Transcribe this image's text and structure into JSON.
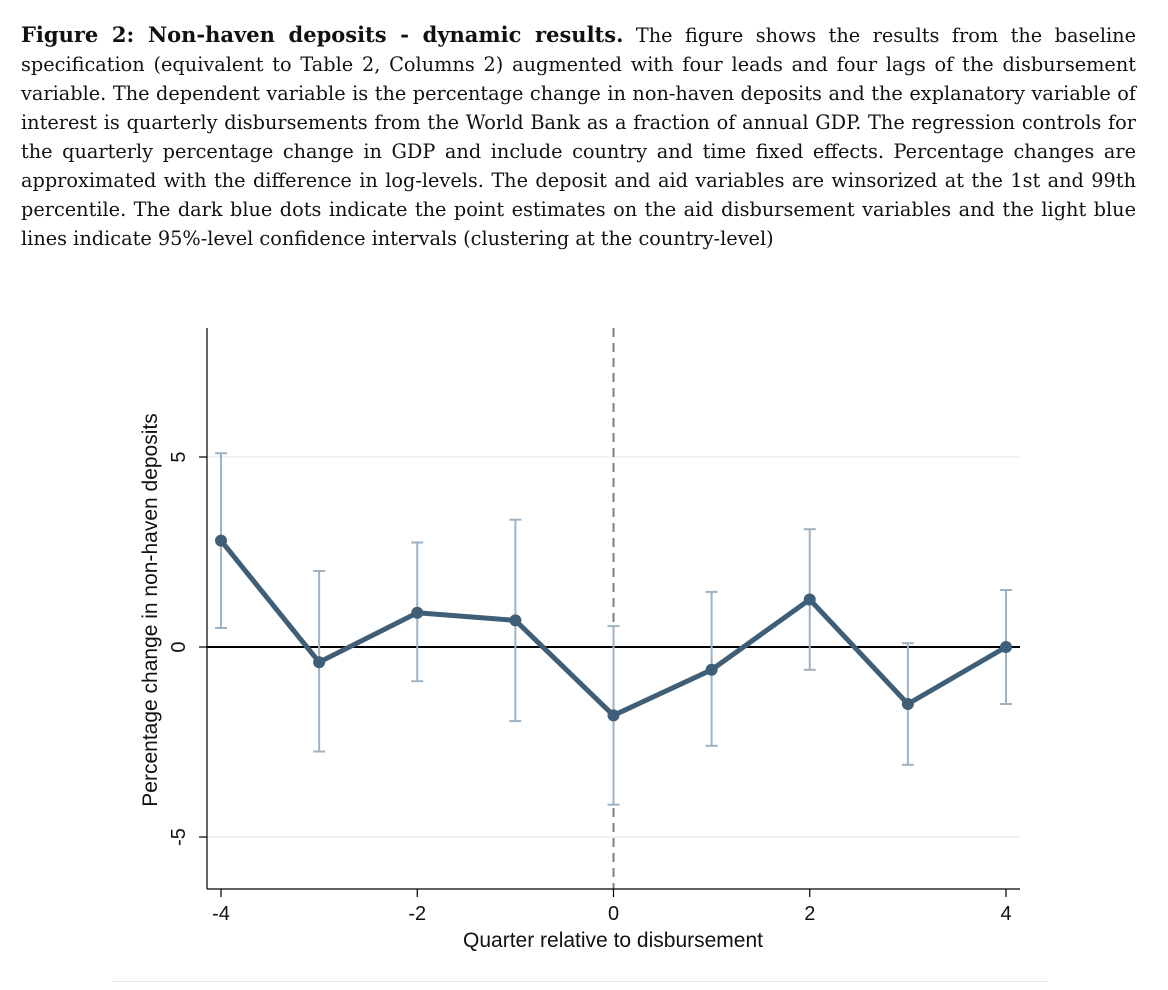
{
  "caption": {
    "label": "Figure 2: Non-haven deposits - dynamic results.",
    "text": "The figure shows the results from the baseline specification (equivalent to Table 2, Columns 2) augmented with four leads and four lags of the disbursement variable.  The dependent variable is the percentage change in non-haven deposits and the explanatory variable of interest is quarterly disbursements from the World Bank as a fraction of annual GDP. The regression controls for the quarterly percentage change in GDP and include country and time fixed effects. Percentage changes are approximated with the difference in log-levels.  The deposit and aid variables are winsorized at the 1st and 99th percentile.  The dark blue dots indicate the point estimates on the aid disbursement variables and the light blue lines indicate 95%-level confidence intervals (clustering at the country-level)"
  },
  "chart_data": {
    "type": "line",
    "xlabel": "Quarter relative to disbursement",
    "ylabel": "Percentage change in non-haven deposits",
    "xlim": [
      -4,
      4
    ],
    "ylim": [
      -6.4,
      8.4
    ],
    "xticks": [
      -4,
      -2,
      0,
      2,
      4
    ],
    "xtick_labels": [
      "-4",
      "-2",
      "0",
      "2",
      "4"
    ],
    "yticks": [
      -5,
      0,
      5
    ],
    "ytick_labels": [
      "-5",
      "0",
      "5"
    ],
    "grid": true,
    "reference_lines": {
      "vertical_x": 0,
      "horizontal_y": 0
    },
    "series": [
      {
        "x": [
          -4,
          -3,
          -2,
          -1,
          0,
          1,
          2,
          3,
          4
        ],
        "values": [
          2.8,
          -0.4,
          0.9,
          0.7,
          -1.8,
          -0.6,
          1.25,
          -1.5,
          0.0
        ],
        "ci_lower": [
          0.5,
          -2.75,
          -0.9,
          -1.95,
          -4.15,
          -2.6,
          -0.6,
          -3.1,
          -1.5
        ],
        "ci_upper": [
          5.1,
          2.0,
          2.75,
          3.35,
          0.55,
          1.45,
          3.1,
          0.1,
          1.5
        ]
      }
    ],
    "colors": {
      "line": "#3f5f78",
      "ci": "#9fb2c2",
      "grid": "#e8f1f3",
      "refline": "#000000",
      "vline": "#7f7f7f"
    }
  }
}
